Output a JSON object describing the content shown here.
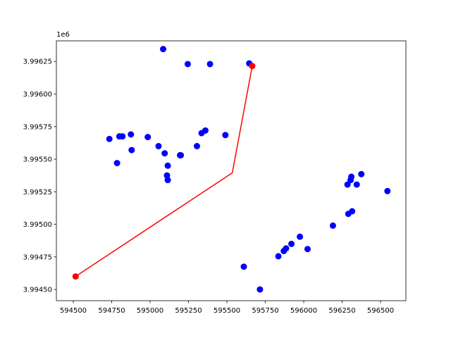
{
  "chart_data": {
    "type": "scatter",
    "title": "",
    "xlabel": "",
    "ylabel": "",
    "y_offset_label": "1e6",
    "xlim": [
      594390,
      596665
    ],
    "ylim": [
      3994414,
      3996408
    ],
    "y_scale": 1000000,
    "x_ticks": [
      594500,
      594750,
      595000,
      595250,
      595500,
      595750,
      596000,
      596250,
      596500
    ],
    "x_tick_labels": [
      "594500",
      "594750",
      "595000",
      "595250",
      "595500",
      "595750",
      "596000",
      "596250",
      "596500"
    ],
    "y_ticks": [
      3994500,
      3994750,
      3995000,
      3995250,
      3995500,
      3995750,
      3996000,
      3996250
    ],
    "y_tick_labels": [
      "3.99450",
      "3.99475",
      "3.99500",
      "3.99525",
      "3.99550",
      "3.99575",
      "3.99600",
      "3.99625"
    ],
    "grid": false,
    "colors": {
      "points": "#0000ff",
      "route": "#ff0000",
      "axes": "#000000"
    },
    "series": [
      {
        "type": "scatter",
        "points": [
          [
            595085,
            3996345
          ],
          [
            595245,
            3996230
          ],
          [
            595390,
            3996230
          ],
          [
            595645,
            3996235
          ],
          [
            594735,
            3995655
          ],
          [
            594800,
            3995675
          ],
          [
            594820,
            3995675
          ],
          [
            594875,
            3995690
          ],
          [
            594880,
            3995570
          ],
          [
            594985,
            3995670
          ],
          [
            595055,
            3995600
          ],
          [
            595095,
            3995545
          ],
          [
            595195,
            3995530
          ],
          [
            595200,
            3995530
          ],
          [
            595115,
            3995450
          ],
          [
            595110,
            3995375
          ],
          [
            595115,
            3995340
          ],
          [
            594785,
            3995470
          ],
          [
            595305,
            3995600
          ],
          [
            595335,
            3995700
          ],
          [
            595360,
            3995720
          ],
          [
            595490,
            3995685
          ],
          [
            595610,
            3994675
          ],
          [
            595715,
            3994500
          ],
          [
            595835,
            3994755
          ],
          [
            595870,
            3994795
          ],
          [
            595885,
            3994815
          ],
          [
            595920,
            3994850
          ],
          [
            595975,
            3994905
          ],
          [
            596025,
            3994810
          ],
          [
            596190,
            3994990
          ],
          [
            596285,
            3995305
          ],
          [
            596305,
            3995340
          ],
          [
            596310,
            3995365
          ],
          [
            596345,
            3995305
          ],
          [
            596375,
            3995385
          ],
          [
            596290,
            3995080
          ],
          [
            596315,
            3995100
          ],
          [
            596545,
            3995255
          ]
        ]
      },
      {
        "type": "line",
        "points": [
          [
            594515,
            3994600
          ],
          [
            595535,
            3995395
          ],
          [
            595665,
            3996215
          ]
        ]
      },
      {
        "type": "scatter",
        "points": [
          [
            594515,
            3994600
          ],
          [
            595665,
            3996215
          ]
        ]
      }
    ]
  }
}
